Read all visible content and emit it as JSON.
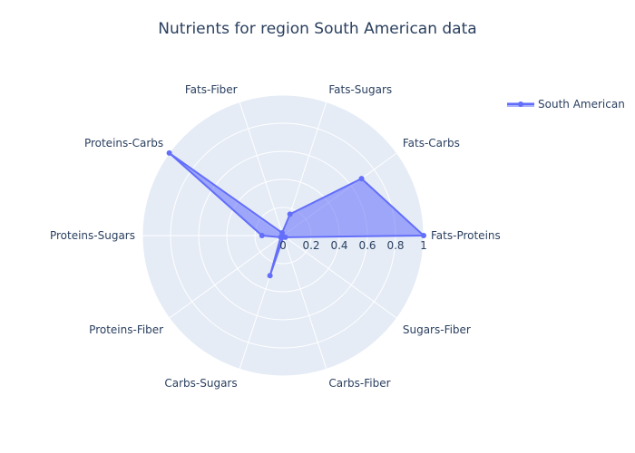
{
  "chart_data": {
    "type": "radar",
    "title": "Nutrients for region South American data",
    "categories": [
      "Fats-Proteins",
      "Fats-Carbs",
      "Fats-Sugars",
      "Fats-Fiber",
      "Proteins-Carbs",
      "Proteins-Sugars",
      "Proteins-Fiber",
      "Carbs-Sugars",
      "Carbs-Fiber",
      "Sugars-Fiber"
    ],
    "series": [
      {
        "name": "South American",
        "values": [
          1.0,
          0.69,
          0.16,
          0.02,
          1.0,
          0.15,
          0.02,
          0.3,
          0.01,
          0.02
        ]
      }
    ],
    "radial_range": [
      0,
      1
    ],
    "radial_ticks": [
      "0",
      "0.2",
      "0.4",
      "0.6",
      "0.8",
      "1"
    ],
    "legend_position": "top-right",
    "colors": {
      "series_line": "#636efa",
      "series_fill": "rgba(99,110,250,0.55)",
      "polar_bg": "#e5ecf6",
      "grid": "#ffffff",
      "text": "#2a3f5f"
    }
  }
}
